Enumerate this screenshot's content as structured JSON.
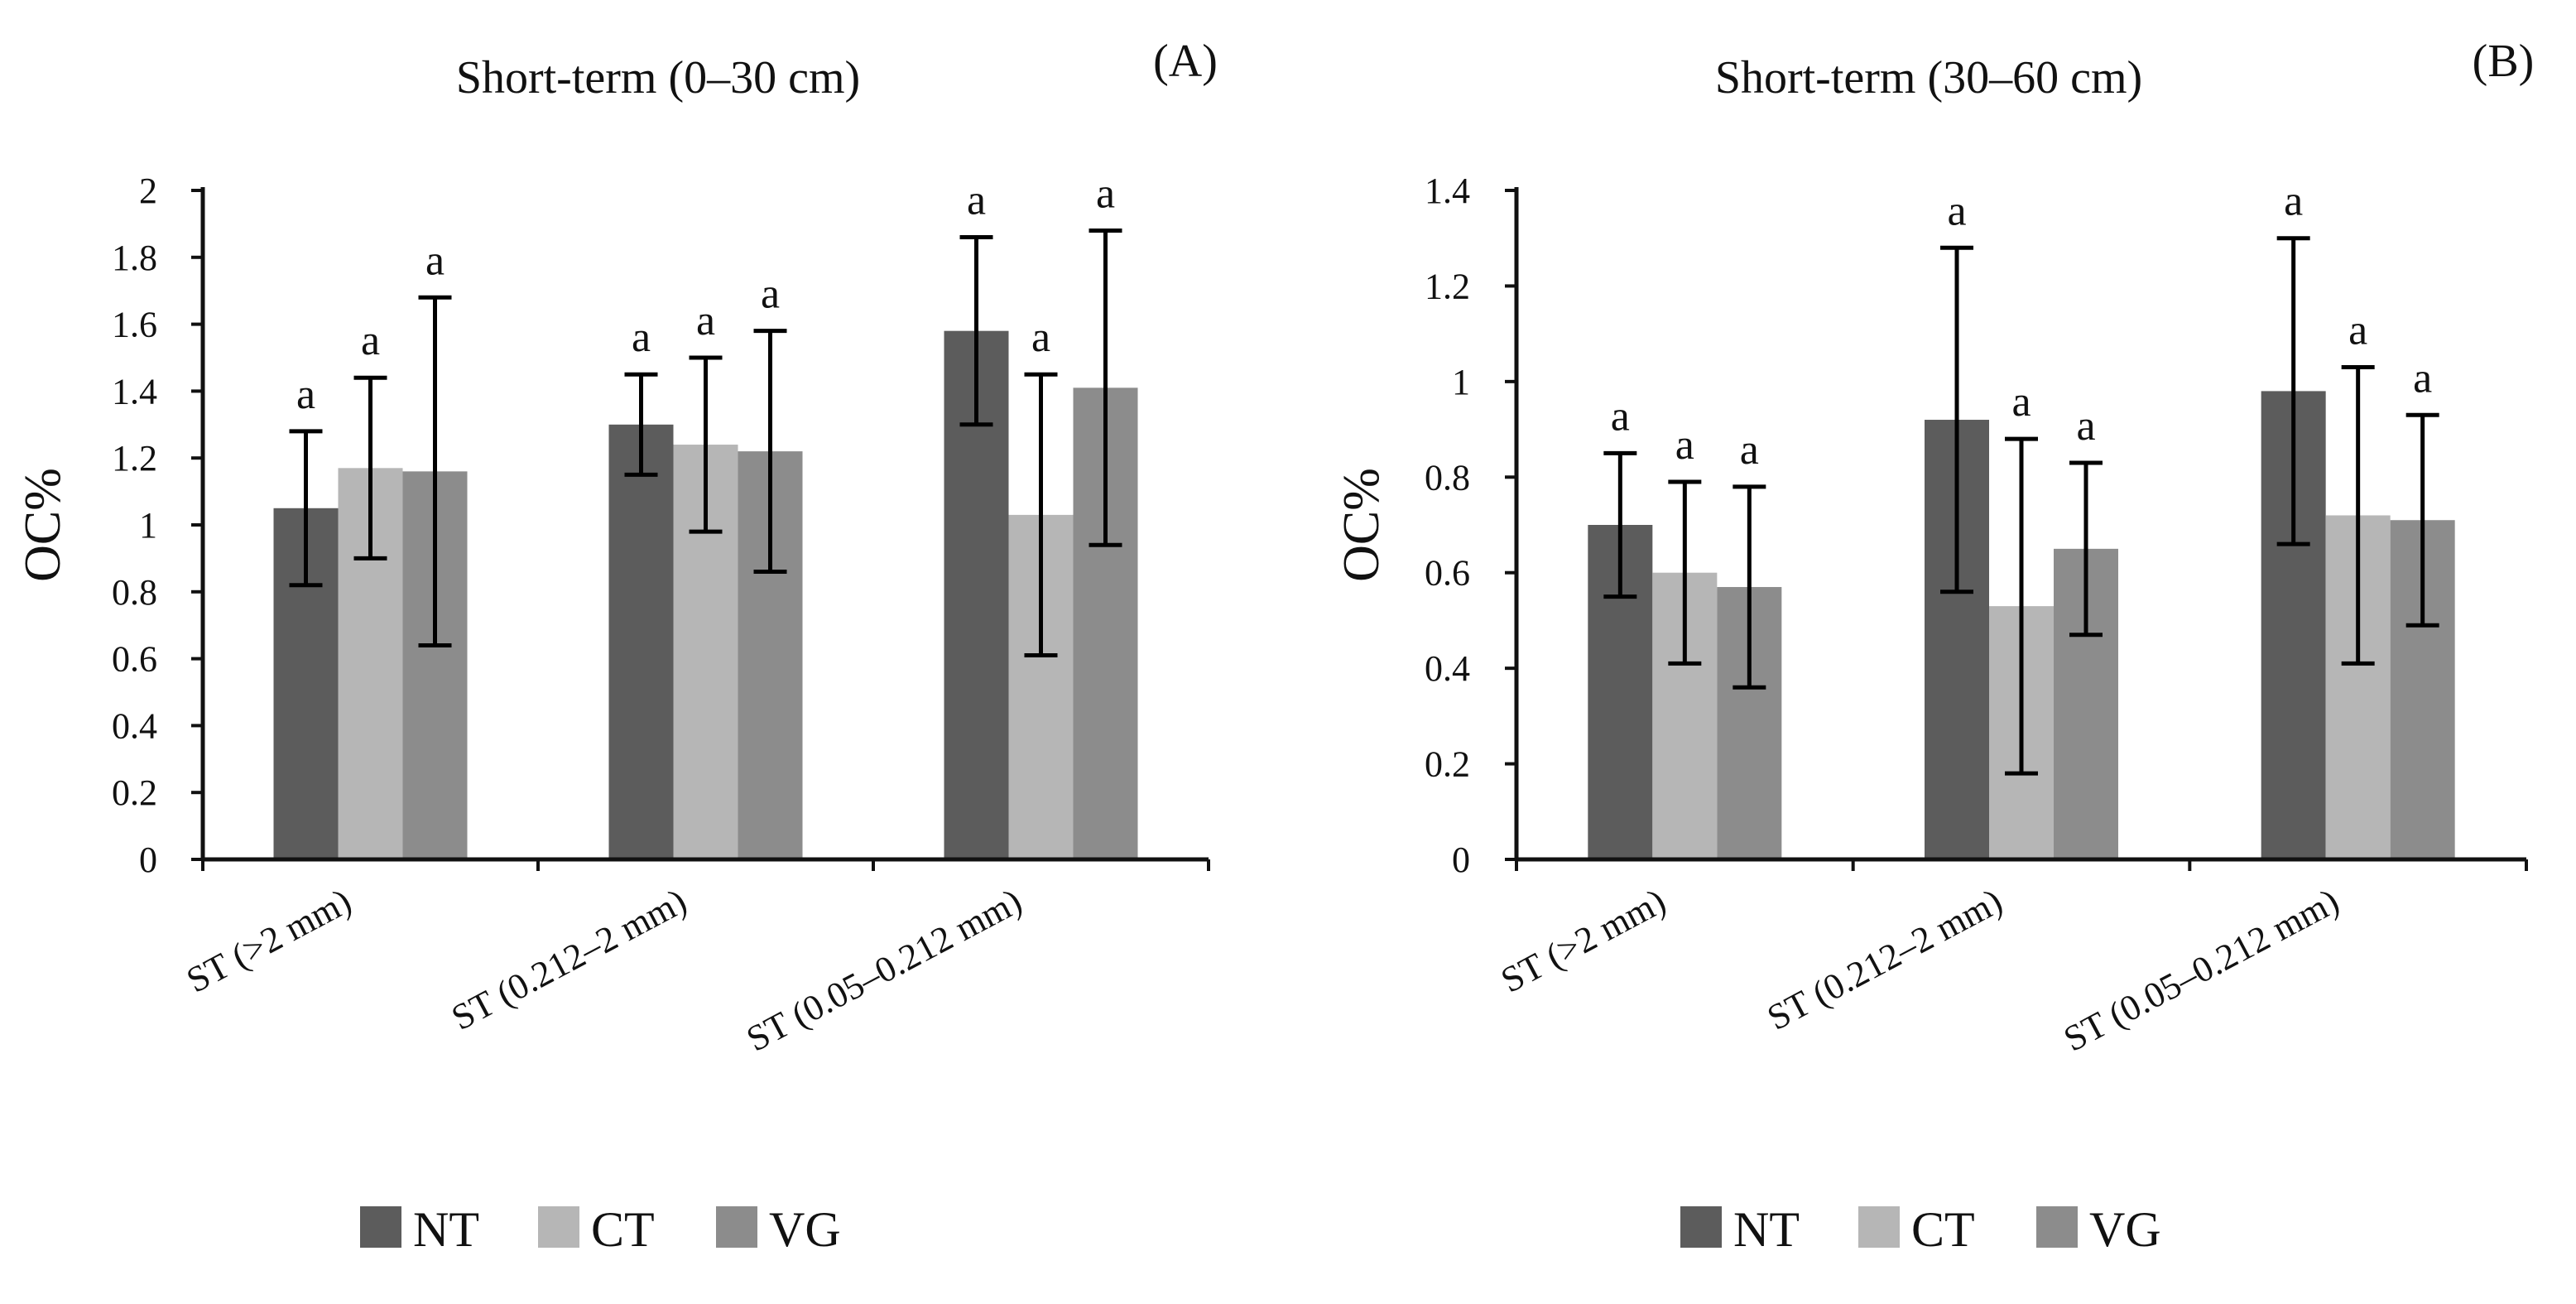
{
  "figure_title": "",
  "legend": [
    {
      "name": "NT",
      "color": "#5c5c5c"
    },
    {
      "name": "CT",
      "color": "#b6b6b6"
    },
    {
      "name": "VG",
      "color": "#8c8c8c"
    }
  ],
  "chart_data": [
    {
      "type": "bar",
      "panel": "(A)",
      "title": "Short-term (0–30 cm)",
      "xlabel": "",
      "ylabel": "OC%",
      "ylim": [
        0,
        2
      ],
      "yticks": [
        0,
        0.2,
        0.4,
        0.6,
        0.8,
        1,
        1.2,
        1.4,
        1.6,
        1.8,
        2
      ],
      "ytick_labels": [
        "0",
        "0.2",
        "0.4",
        "0.6",
        "0.8",
        "1",
        "1.2",
        "1.4",
        "1.6",
        "1.8",
        "2"
      ],
      "categories": [
        "ST (>2 mm)",
        "ST (0.212–2 mm)",
        "ST (0.05–0.212 mm)"
      ],
      "series": [
        {
          "name": "NT",
          "values": [
            1.05,
            1.3,
            1.58
          ],
          "error": [
            0.23,
            0.15,
            0.28
          ],
          "letters": [
            "a",
            "a",
            "a"
          ]
        },
        {
          "name": "CT",
          "values": [
            1.17,
            1.24,
            1.03
          ],
          "error": [
            0.27,
            0.26,
            0.42
          ],
          "letters": [
            "a",
            "a",
            "a"
          ]
        },
        {
          "name": "VG",
          "values": [
            1.16,
            1.22,
            1.41
          ],
          "error": [
            0.52,
            0.36,
            0.47
          ],
          "letters": [
            "a",
            "a",
            "a"
          ]
        }
      ],
      "legend_position": "bottom"
    },
    {
      "type": "bar",
      "panel": "(B)",
      "title": "Short-term (30–60 cm)",
      "xlabel": "",
      "ylabel": "OC%",
      "ylim": [
        0,
        1.4
      ],
      "yticks": [
        0,
        0.2,
        0.4,
        0.6,
        0.8,
        1,
        1.2,
        1.4
      ],
      "ytick_labels": [
        "0",
        "0.2",
        "0.4",
        "0.6",
        "0.8",
        "1",
        "1.2",
        "1.4"
      ],
      "categories": [
        "ST (>2 mm)",
        "ST (0.212–2 mm)",
        "ST (0.05–0.212 mm)"
      ],
      "series": [
        {
          "name": "NT",
          "values": [
            0.7,
            0.92,
            0.98
          ],
          "error": [
            0.15,
            0.36,
            0.32
          ],
          "letters": [
            "a",
            "a",
            "a"
          ]
        },
        {
          "name": "CT",
          "values": [
            0.6,
            0.53,
            0.72
          ],
          "error": [
            0.19,
            0.35,
            0.31
          ],
          "letters": [
            "a",
            "a",
            "a"
          ]
        },
        {
          "name": "VG",
          "values": [
            0.57,
            0.65,
            0.71
          ],
          "error": [
            0.21,
            0.18,
            0.22
          ],
          "letters": [
            "a",
            "a",
            "a"
          ]
        }
      ],
      "legend_position": "bottom"
    }
  ]
}
